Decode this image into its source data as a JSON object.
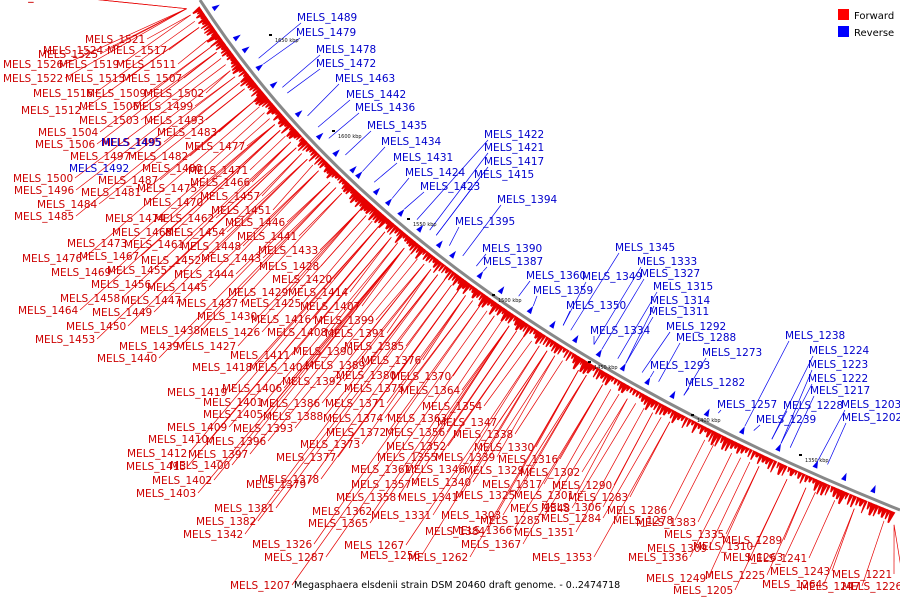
{
  "caption": "Megasphaera elsdenii strain DSM 20460 draft genome. - 0..2474718",
  "legend": [
    {
      "label": "Forward",
      "color": "#ff0000"
    },
    {
      "label": "Reverse",
      "color": "#0000ff"
    }
  ],
  "colors": {
    "forward": "#e60000",
    "reverse": "#0000ee",
    "backbone": "#888888",
    "tick": "#000000"
  },
  "scale_ticks": [
    "1650 kbp",
    "1600 kbp",
    "1550 kbp",
    "1500 kbp",
    "1450 kbp",
    "1400 kbp",
    "1350 kbp"
  ],
  "forward_labels": [
    "MELS_1525",
    "MELS_1521",
    "MELS_1524",
    "MELS_1517",
    "MELS_1526",
    "MELS_1519",
    "MELS_1511",
    "MELS_1522",
    "MELS_1515",
    "MELS_1507",
    "MELS_1516",
    "MELS_1509",
    "MELS_1502",
    "MELS_1505",
    "MELS_1499",
    "MELS_1512",
    "MELS_1503",
    "MELS_1493",
    "MELS_1504",
    "MELS_1483",
    "MELS_1506",
    "MELS_1495",
    "MELS_1477",
    "MELS_1497",
    "MELS_1482",
    "MELS_1480",
    "MELS_1471",
    "MELS_1500",
    "MELS_1487",
    "MELS_1466",
    "MELS_1496",
    "MELS_1481",
    "MELS_1475",
    "MELS_1457",
    "MELS_1484",
    "MELS_1470",
    "MELS_1451",
    "MELS_1485",
    "MELS_1474",
    "MELS_1462",
    "MELS_1446",
    "MELS_1468",
    "MELS_1454",
    "MELS_1441",
    "MELS_1473",
    "MELS_1461",
    "MELS_1448",
    "MELS_1433",
    "MELS_1476",
    "MELS_1467",
    "MELS_1452",
    "MELS_1443",
    "MELS_1469",
    "MELS_1455",
    "MELS_1444",
    "MELS_1428",
    "MELS_1456",
    "MELS_1445",
    "MELS_1420",
    "MELS_1458",
    "MELS_1447",
    "MELS_1429",
    "MELS_1414",
    "MELS_1437",
    "MELS_1425",
    "MELS_1464",
    "MELS_1449",
    "MELS_1407",
    "MELS_1430",
    "MELS_1416",
    "MELS_1399",
    "MELS_1450",
    "MELS_1438",
    "MELS_1426",
    "MELS_1408",
    "MELS_1391",
    "MELS_1453",
    "MELS_1439",
    "MELS_1427",
    "MELS_1385",
    "MELS_1390",
    "MELS_1440",
    "MELS_1411",
    "MELS_1389",
    "MELS_1376",
    "MELS_1418",
    "MELS_1404",
    "MELS_1392",
    "MELS_1380",
    "MELS_1370",
    "MELS_1419",
    "MELS_1406",
    "MELS_1375",
    "MELS_1364",
    "MELS_1401",
    "MELS_1386",
    "MELS_1371",
    "MELS_1354",
    "MELS_1405",
    "MELS_1388",
    "MELS_1374",
    "MELS_1363",
    "MELS_1347",
    "MELS_1409",
    "MELS_1393",
    "MELS_1372",
    "MELS_1356",
    "MELS_1338",
    "MELS_1410",
    "MELS_1396",
    "MELS_1373",
    "MELS_1352",
    "MELS_1330",
    "MELS_1412",
    "MELS_1397",
    "MELS_1377",
    "MELS_1355",
    "MELS_1339",
    "MELS_1316",
    "MELS_1413",
    "MELS_1400",
    "MELS_1361",
    "MELS_1346",
    "MELS_1329",
    "MELS_1302",
    "MELS_1378",
    "MELS_1340",
    "MELS_1317",
    "MELS_1402",
    "MELS_1379",
    "MELS_1357",
    "MELS_1325",
    "MELS_1301",
    "MELS_1290",
    "MELS_1403",
    "MELS_1358",
    "MELS_1341",
    "MELS_1283",
    "MELS_1381",
    "MELS_1362",
    "MELS_1348",
    "MELS_1306",
    "MELS_1286",
    "MELS_1382",
    "MELS_1331",
    "MELS_1284",
    "MELS_1278",
    "MELS_1365",
    "MELS_1303",
    "MELS_1285",
    "MELS_1383",
    "MELS_1342",
    "MELS_1326",
    "MELS_1267",
    "MELS_1384",
    "MELS_1366",
    "MELS_1351",
    "MELS_1335",
    "MELS_1309",
    "MELS_1287",
    "MELS_1256",
    "MELS_1262",
    "MELS_1367",
    "MELS_1353",
    "MELS_1336",
    "MELS_1310",
    "MELS_1289",
    "MELS_1241",
    "MELS_1263",
    "MELS_1243",
    "MELS_1221",
    "MELS_1249",
    "MELS_1225",
    "MELS_1205",
    "MELS_1264",
    "MELS_1247",
    "MELS_1226",
    "MELS_1207",
    "MELS_1188",
    "MELS_1369"
  ],
  "reverse_labels": [
    "MELS_1489",
    "MELS_1479",
    "MELS_1478",
    "MELS_1472",
    "MELS_1463",
    "MELS_1442",
    "MELS_1436",
    "MELS_1435",
    "MELS_1422",
    "MELS_1434",
    "MELS_1421",
    "MELS_1431",
    "MELS_1417",
    "MELS_1424",
    "MELS_1415",
    "MELS_1423",
    "MELS_1394",
    "MELS_1395",
    "MELS_1390",
    "MELS_1345",
    "MELS_1387",
    "MELS_1333",
    "MELS_1360",
    "MELS_1349",
    "MELS_1327",
    "MELS_1359",
    "MELS_1315",
    "MELS_1350",
    "MELS_1314",
    "MELS_1311",
    "MELS_1334",
    "MELS_1292",
    "MELS_1288",
    "MELS_1238",
    "MELS_1273",
    "MELS_1224",
    "MELS_1293",
    "MELS_1223",
    "MELS_1282",
    "MELS_1222",
    "MELS_1217",
    "MELS_1257",
    "MELS_1228",
    "MELS_1203",
    "MELS_1239",
    "MELS_1202",
    "MELS_1495",
    "MELS_1492"
  ]
}
